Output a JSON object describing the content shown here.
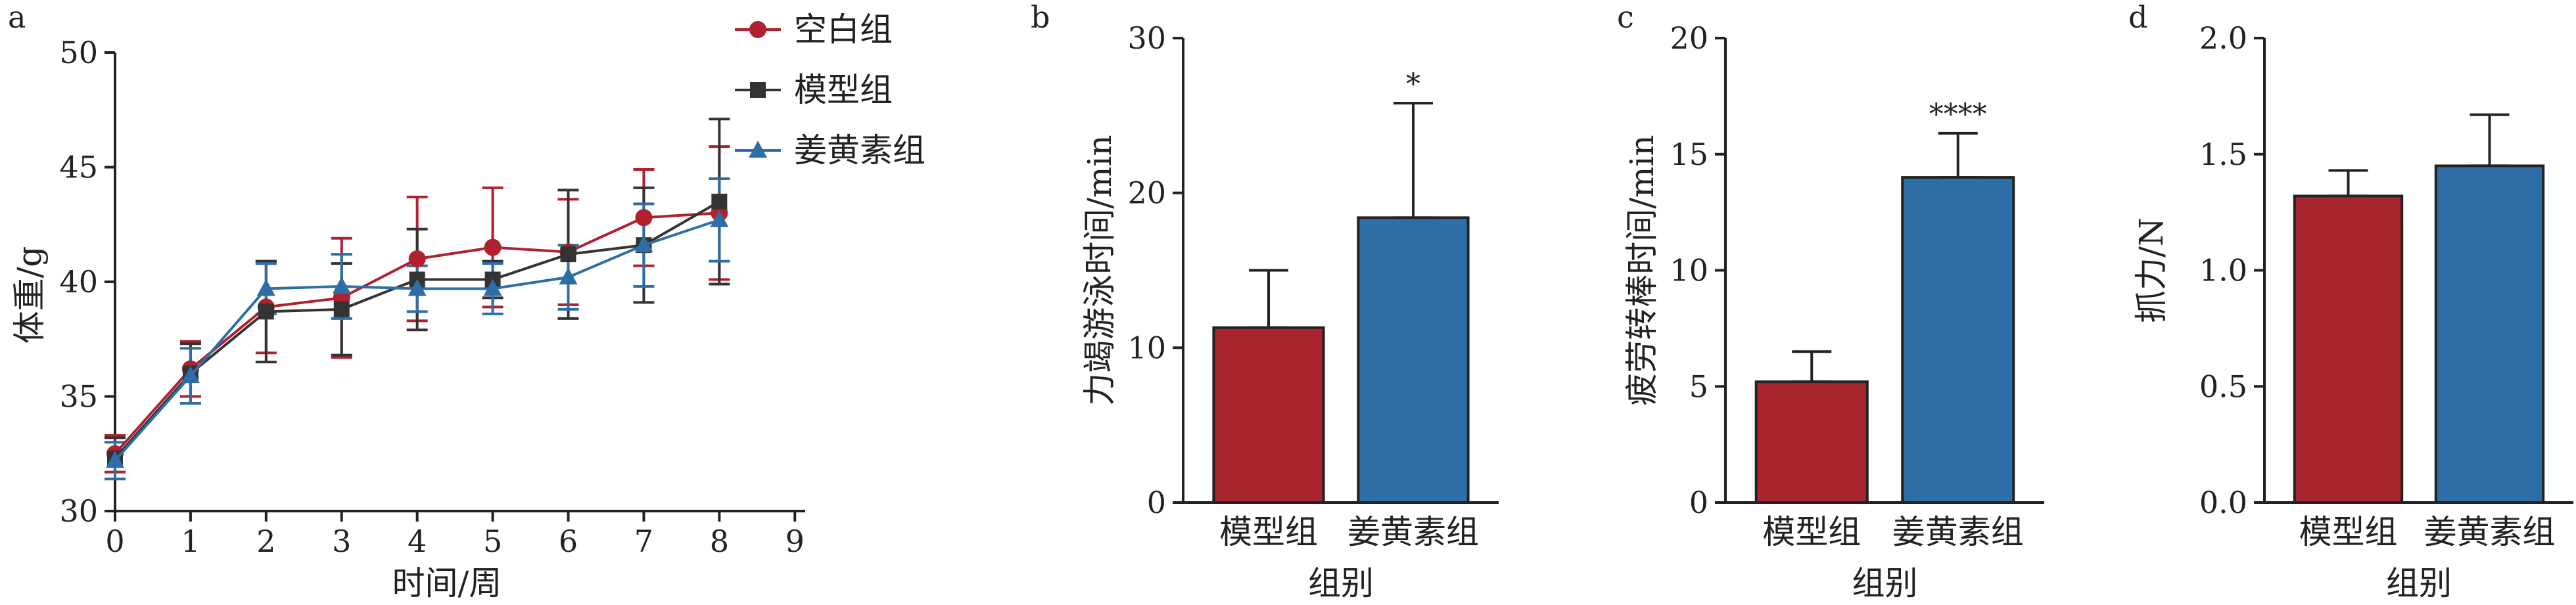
{
  "chart_data": [
    {
      "panel": "a",
      "type": "line",
      "xlabel": "时间/周",
      "ylabel": "体重/g",
      "xlim": [
        0,
        9
      ],
      "ylim": [
        30,
        50
      ],
      "xticks": [
        0,
        1,
        2,
        3,
        4,
        5,
        6,
        7,
        8,
        9
      ],
      "yticks": [
        30,
        35,
        40,
        45,
        50
      ],
      "legend_position": "top-right",
      "x": [
        0,
        1,
        2,
        3,
        4,
        5,
        6,
        7,
        8
      ],
      "series": [
        {
          "name": "空白组",
          "marker": "circle",
          "color": "#b0202e",
          "values": [
            32.5,
            36.2,
            38.9,
            39.3,
            41.0,
            41.5,
            41.3,
            42.8,
            43.0
          ],
          "errors": [
            0.8,
            1.2,
            2.0,
            2.6,
            2.7,
            2.6,
            2.3,
            2.1,
            2.9
          ]
        },
        {
          "name": "模型组",
          "marker": "square",
          "color": "#333333",
          "values": [
            32.3,
            36.0,
            38.7,
            38.8,
            40.1,
            40.1,
            41.2,
            41.6,
            43.5
          ],
          "errors": [
            0.9,
            1.3,
            2.2,
            2.0,
            2.2,
            0.8,
            2.8,
            2.5,
            3.6
          ]
        },
        {
          "name": "姜黄素组",
          "marker": "triangle",
          "color": "#2e6ea6",
          "values": [
            32.2,
            35.9,
            39.7,
            39.8,
            39.7,
            39.7,
            40.2,
            41.6,
            42.7
          ],
          "errors": [
            0.8,
            1.2,
            1.1,
            1.4,
            1.0,
            1.1,
            1.4,
            1.8,
            1.8
          ]
        }
      ]
    },
    {
      "panel": "b",
      "type": "bar",
      "categories": [
        "模型组",
        "姜黄素组"
      ],
      "values": [
        11.3,
        18.4
      ],
      "errors": [
        3.7,
        7.4
      ],
      "colors": [
        "#a8252f",
        "#2e6ea6"
      ],
      "significance": [
        "",
        "*"
      ],
      "xlabel": "组别",
      "ylabel": "力竭游泳时间/min",
      "ylim": [
        0,
        30
      ],
      "yticks": [
        0,
        10,
        20,
        30
      ]
    },
    {
      "panel": "c",
      "type": "bar",
      "categories": [
        "模型组",
        "姜黄素组"
      ],
      "values": [
        5.2,
        14.0
      ],
      "errors": [
        1.3,
        1.9
      ],
      "colors": [
        "#a8252f",
        "#2e6ea6"
      ],
      "significance": [
        "",
        "****"
      ],
      "xlabel": "组别",
      "ylabel": "疲劳转棒时间/min",
      "ylim": [
        0,
        20
      ],
      "yticks": [
        0,
        5,
        10,
        15,
        20
      ]
    },
    {
      "panel": "d",
      "type": "bar",
      "categories": [
        "模型组",
        "姜黄素组"
      ],
      "values": [
        1.32,
        1.45
      ],
      "errors": [
        0.11,
        0.22
      ],
      "colors": [
        "#a8252f",
        "#2e6ea6"
      ],
      "significance": [
        "",
        ""
      ],
      "xlabel": "组别",
      "ylabel": "抓力/N",
      "ylim": [
        0,
        2.0
      ],
      "yticks": [
        0,
        0.5,
        1.0,
        1.5,
        2.0
      ],
      "ytick_decimals": 1
    }
  ]
}
